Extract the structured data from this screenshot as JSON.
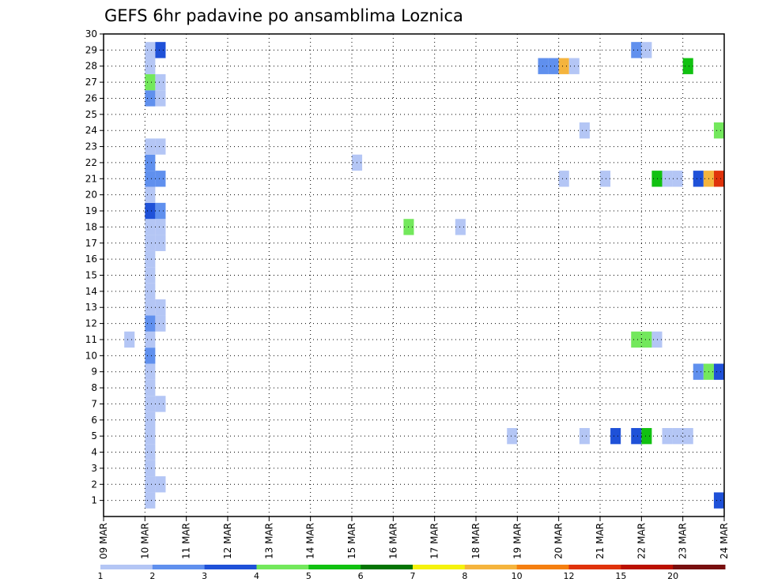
{
  "chart_data": {
    "type": "heatmap",
    "title": "GEFS 6hr padavine po ansamblima Loznica",
    "xlabel": "",
    "ylabel": "",
    "x_ticks": [
      "09 MAR",
      "10 MAR",
      "11 MAR",
      "12 MAR",
      "13 MAR",
      "14 MAR",
      "15 MAR",
      "16 MAR",
      "17 MAR",
      "18 MAR",
      "19 MAR",
      "20 MAR",
      "21 MAR",
      "22 MAR",
      "23 MAR",
      "24 MAR"
    ],
    "x_range_days": [
      9,
      24
    ],
    "x_step_hours": 6,
    "y_ticks": [
      "1",
      "2",
      "3",
      "4",
      "5",
      "6",
      "7",
      "8",
      "9",
      "10",
      "11",
      "12",
      "13",
      "14",
      "15",
      "16",
      "17",
      "18",
      "19",
      "20",
      "21",
      "22",
      "23",
      "24",
      "25",
      "26",
      "27",
      "28",
      "29",
      "30"
    ],
    "y_range": [
      0,
      30
    ],
    "grid": true,
    "legend": {
      "placement": "bottom",
      "labels": [
        "1",
        "2",
        "3",
        "4",
        "5",
        "6",
        "7",
        "8",
        "10",
        "12",
        "15",
        "20"
      ],
      "colors": [
        "#b4c6f5",
        "#6090ee",
        "#1f51d8",
        "#73e85c",
        "#11c111",
        "#057505",
        "#f5f20d",
        "#f5b43d",
        "#f57f10",
        "#e0330b",
        "#bb1100",
        "#780f0f"
      ]
    },
    "cells": [
      {
        "day": 10.0,
        "member": 1,
        "value": 1
      },
      {
        "day": 10.0,
        "member": 2,
        "value": 1
      },
      {
        "day": 10.0,
        "member": 3,
        "value": 1
      },
      {
        "day": 10.0,
        "member": 4,
        "value": 1
      },
      {
        "day": 10.0,
        "member": 5,
        "value": 1
      },
      {
        "day": 10.0,
        "member": 6,
        "value": 1
      },
      {
        "day": 10.0,
        "member": 7,
        "value": 1
      },
      {
        "day": 10.0,
        "member": 8,
        "value": 1
      },
      {
        "day": 10.0,
        "member": 9,
        "value": 1
      },
      {
        "day": 10.0,
        "member": 10,
        "value": 2
      },
      {
        "day": 10.0,
        "member": 11,
        "value": 1
      },
      {
        "day": 10.0,
        "member": 12,
        "value": 2
      },
      {
        "day": 10.0,
        "member": 13,
        "value": 1
      },
      {
        "day": 10.0,
        "member": 14,
        "value": 1
      },
      {
        "day": 10.0,
        "member": 15,
        "value": 1
      },
      {
        "day": 10.0,
        "member": 16,
        "value": 1
      },
      {
        "day": 10.0,
        "member": 17,
        "value": 1
      },
      {
        "day": 10.0,
        "member": 18,
        "value": 1
      },
      {
        "day": 10.0,
        "member": 19,
        "value": 3
      },
      {
        "day": 10.0,
        "member": 20,
        "value": 1
      },
      {
        "day": 10.0,
        "member": 21,
        "value": 2
      },
      {
        "day": 10.0,
        "member": 22,
        "value": 2
      },
      {
        "day": 10.0,
        "member": 23,
        "value": 1
      },
      {
        "day": 10.0,
        "member": 26,
        "value": 2
      },
      {
        "day": 10.0,
        "member": 27,
        "value": 4
      },
      {
        "day": 10.0,
        "member": 28,
        "value": 1
      },
      {
        "day": 10.0,
        "member": 29,
        "value": 1
      },
      {
        "day": 10.25,
        "member": 2,
        "value": 1
      },
      {
        "day": 10.25,
        "member": 7,
        "value": 1
      },
      {
        "day": 10.25,
        "member": 12,
        "value": 1
      },
      {
        "day": 10.25,
        "member": 13,
        "value": 1
      },
      {
        "day": 10.25,
        "member": 17,
        "value": 1
      },
      {
        "day": 10.25,
        "member": 18,
        "value": 1
      },
      {
        "day": 10.25,
        "member": 19,
        "value": 2
      },
      {
        "day": 10.25,
        "member": 21,
        "value": 2
      },
      {
        "day": 10.25,
        "member": 23,
        "value": 1
      },
      {
        "day": 10.25,
        "member": 26,
        "value": 1
      },
      {
        "day": 10.25,
        "member": 27,
        "value": 1
      },
      {
        "day": 10.25,
        "member": 29,
        "value": 3
      },
      {
        "day": 9.5,
        "member": 11,
        "value": 1
      },
      {
        "day": 15.0,
        "member": 22,
        "value": 1
      },
      {
        "day": 16.25,
        "member": 18,
        "value": 4
      },
      {
        "day": 17.5,
        "member": 18,
        "value": 1
      },
      {
        "day": 18.75,
        "member": 5,
        "value": 1
      },
      {
        "day": 19.5,
        "member": 28,
        "value": 2
      },
      {
        "day": 19.75,
        "member": 28,
        "value": 2
      },
      {
        "day": 20.0,
        "member": 28,
        "value": 8
      },
      {
        "day": 20.25,
        "member": 28,
        "value": 1
      },
      {
        "day": 20.0,
        "member": 21,
        "value": 1
      },
      {
        "day": 20.5,
        "member": 24,
        "value": 1
      },
      {
        "day": 20.5,
        "member": 5,
        "value": 1
      },
      {
        "day": 21.0,
        "member": 21,
        "value": 1
      },
      {
        "day": 21.25,
        "member": 5,
        "value": 3
      },
      {
        "day": 21.75,
        "member": 5,
        "value": 3
      },
      {
        "day": 22.0,
        "member": 5,
        "value": 5
      },
      {
        "day": 21.75,
        "member": 11,
        "value": 4
      },
      {
        "day": 22.0,
        "member": 11,
        "value": 4
      },
      {
        "day": 22.25,
        "member": 11,
        "value": 1
      },
      {
        "day": 21.75,
        "member": 29,
        "value": 2
      },
      {
        "day": 22.0,
        "member": 29,
        "value": 1
      },
      {
        "day": 22.25,
        "member": 21,
        "value": 5
      },
      {
        "day": 22.5,
        "member": 21,
        "value": 1
      },
      {
        "day": 22.75,
        "member": 21,
        "value": 1
      },
      {
        "day": 22.5,
        "member": 5,
        "value": 1
      },
      {
        "day": 22.75,
        "member": 5,
        "value": 1
      },
      {
        "day": 23.0,
        "member": 5,
        "value": 1
      },
      {
        "day": 23.0,
        "member": 28,
        "value": 5
      },
      {
        "day": 23.25,
        "member": 21,
        "value": 3
      },
      {
        "day": 23.5,
        "member": 21,
        "value": 8
      },
      {
        "day": 23.75,
        "member": 21,
        "value": 12
      },
      {
        "day": 23.25,
        "member": 9,
        "value": 2
      },
      {
        "day": 23.5,
        "member": 9,
        "value": 4
      },
      {
        "day": 23.75,
        "member": 9,
        "value": 3
      },
      {
        "day": 23.75,
        "member": 24,
        "value": 4
      },
      {
        "day": 23.75,
        "member": 1,
        "value": 3
      }
    ]
  }
}
